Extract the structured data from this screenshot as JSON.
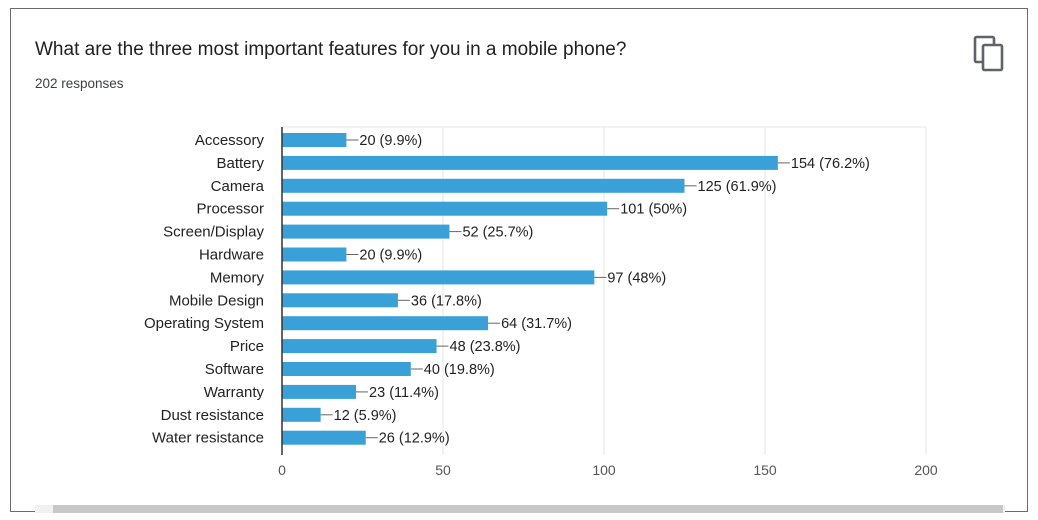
{
  "question": {
    "title": "What are the three most important features for you in a mobile phone?",
    "responses": "202 responses"
  },
  "icons": {
    "copy": "copy-icon"
  },
  "colors": {
    "bar": "#3aa0d8",
    "grid": "#e6e6e6",
    "axis": "#333333",
    "text": "#222222"
  },
  "chart_data": {
    "type": "bar",
    "orientation": "horizontal",
    "title": "",
    "xlabel": "",
    "ylabel": "",
    "xlim": [
      0,
      200
    ],
    "x_ticks": [
      0,
      50,
      100,
      150,
      200
    ],
    "grid": true,
    "legend": "none",
    "categories": [
      "Accessory",
      "Battery",
      "Camera",
      "Processor",
      "Screen/Display",
      "Hardware",
      "Memory",
      "Mobile Design",
      "Operating System",
      "Price",
      "Software",
      "Warranty",
      "Dust resistance",
      "Water resistance"
    ],
    "values": [
      20,
      154,
      125,
      101,
      52,
      20,
      97,
      36,
      64,
      48,
      40,
      23,
      12,
      26
    ],
    "data_labels": [
      "20 (9.9%)",
      "154 (76.2%)",
      "125 (61.9%)",
      "101 (50%)",
      "52 (25.7%)",
      "20 (9.9%)",
      "97 (48%)",
      "36 (17.8%)",
      "64 (31.7%)",
      "48 (23.8%)",
      "40 (19.8%)",
      "23 (11.4%)",
      "12 (5.9%)",
      "26 (12.9%)"
    ]
  }
}
